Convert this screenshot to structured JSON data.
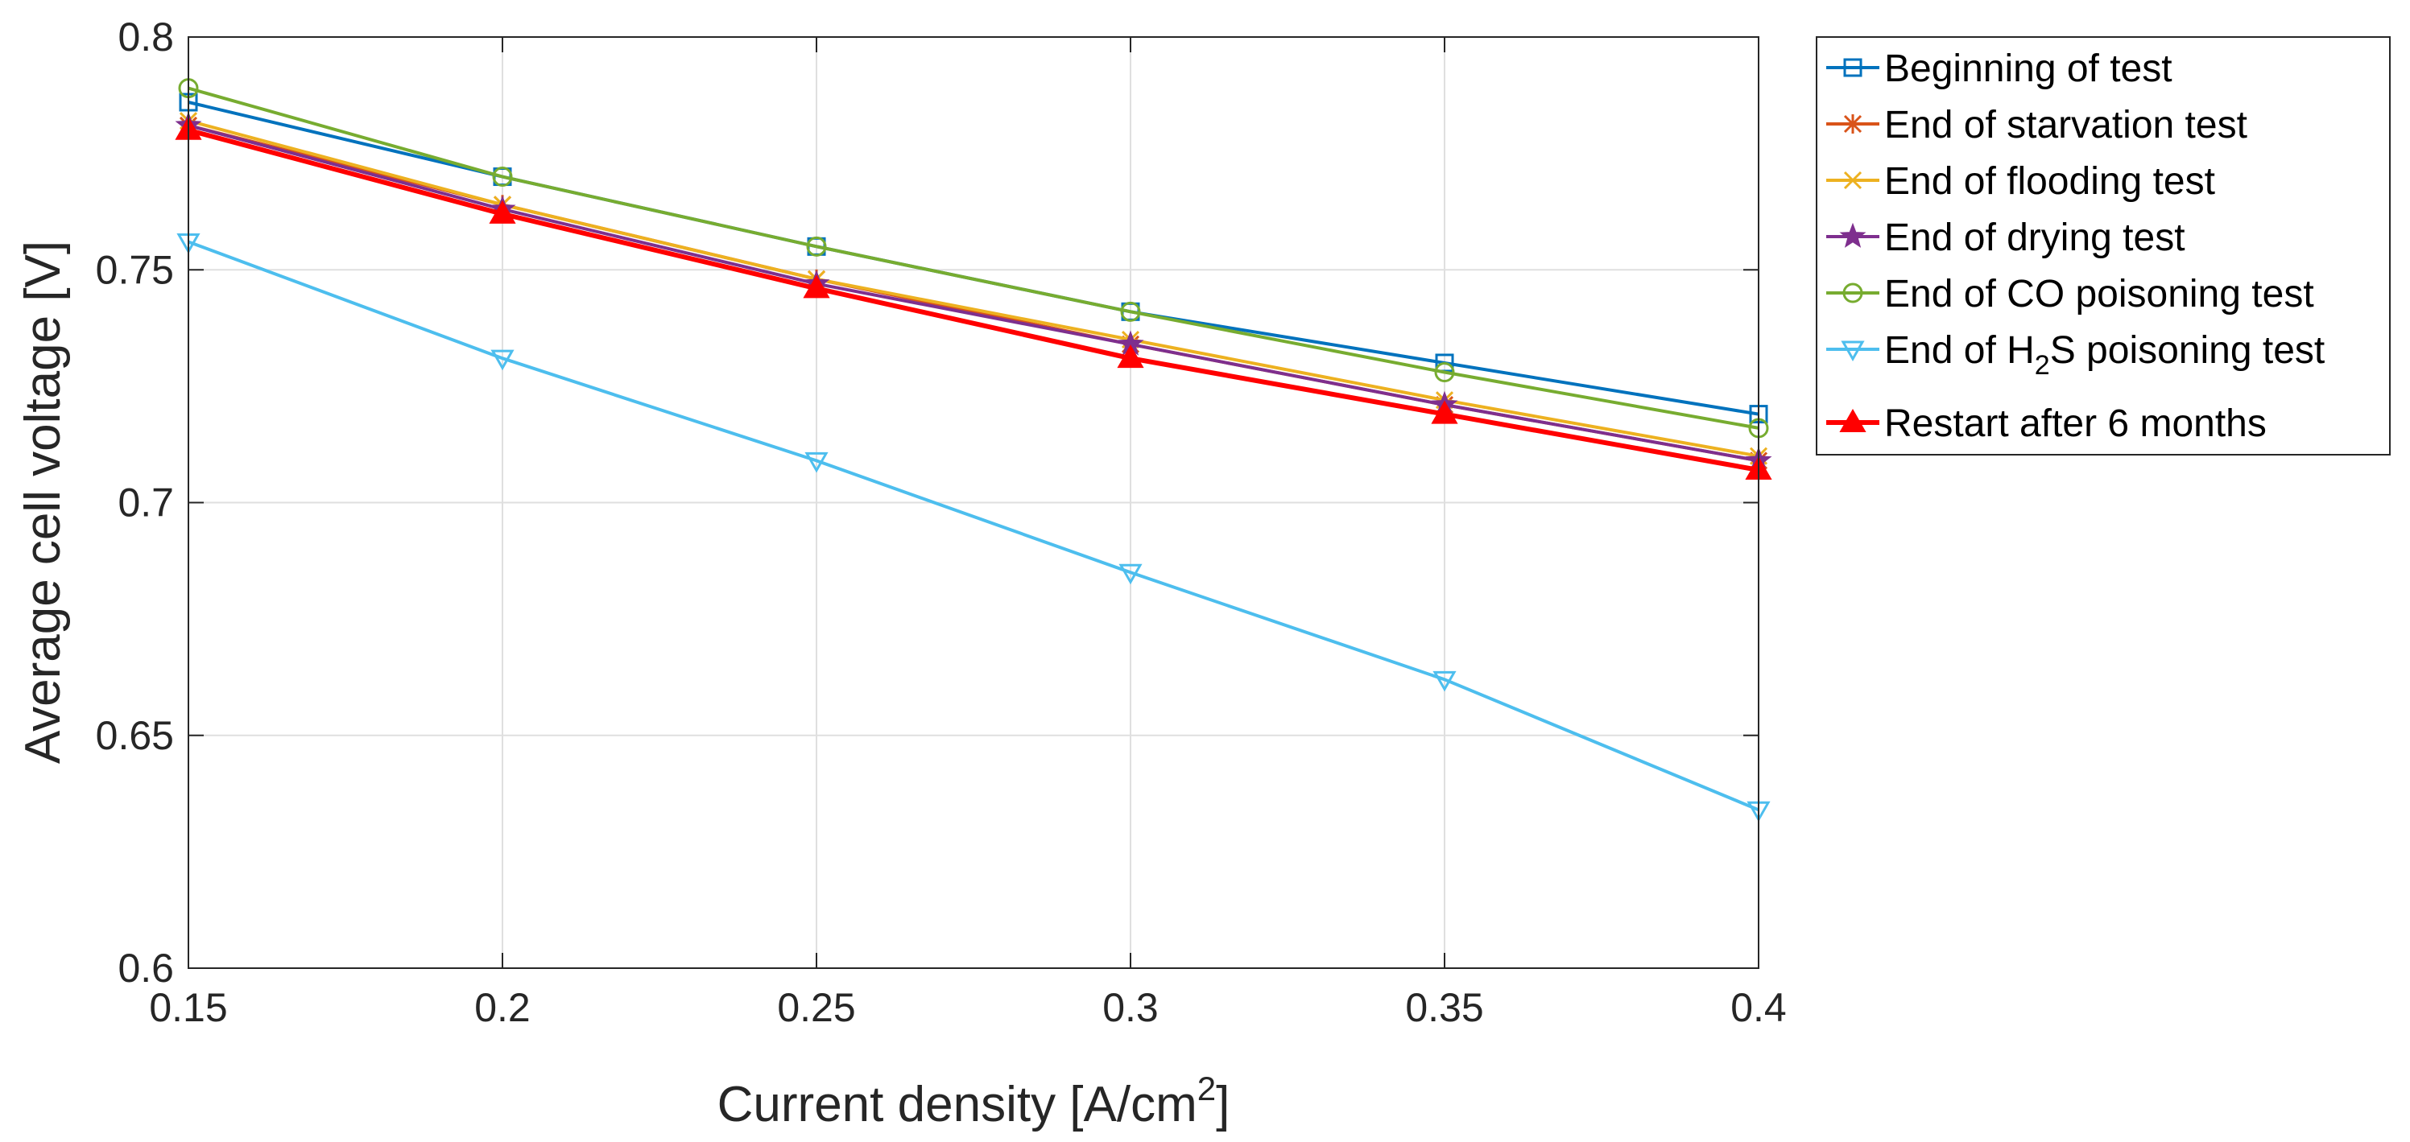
{
  "chart_data": {
    "type": "line",
    "xlabel_main": "Current density [A/cm",
    "xlabel_sup": "2",
    "xlabel_close": "]",
    "ylabel": "Average cell voltage [V]",
    "xlim": [
      0.15,
      0.4
    ],
    "ylim": [
      0.6,
      0.8
    ],
    "grid": true,
    "legend_position": "outside-right-top",
    "x": [
      0.15,
      0.2,
      0.25,
      0.3,
      0.35,
      0.4
    ],
    "x_tick_labels": [
      "0.15",
      "0.2",
      "0.25",
      "0.3",
      "0.35",
      "0.4"
    ],
    "y_ticks": [
      0.6,
      0.65,
      0.7,
      0.75,
      0.8
    ],
    "y_tick_labels": [
      "0.6",
      "0.65",
      "0.7",
      "0.75",
      "0.8"
    ],
    "series": [
      {
        "name": "Beginning of test",
        "color": "#0072BD",
        "marker": "square",
        "values": [
          0.786,
          0.77,
          0.755,
          0.741,
          0.73,
          0.719
        ]
      },
      {
        "name": "End of starvation test",
        "color": "#D95319",
        "marker": "asterisk",
        "values": [
          0.781,
          0.764,
          0.748,
          0.734,
          0.721,
          0.709
        ]
      },
      {
        "name": "End of flooding test",
        "color": "#EDB120",
        "marker": "x",
        "values": [
          0.782,
          0.764,
          0.748,
          0.735,
          0.722,
          0.71
        ]
      },
      {
        "name": "End of drying test",
        "color": "#7E2F8E",
        "marker": "pentagram",
        "values": [
          0.781,
          0.763,
          0.747,
          0.734,
          0.721,
          0.709
        ]
      },
      {
        "name": "End of CO poisoning test",
        "color": "#77AC30",
        "marker": "circle",
        "values": [
          0.789,
          0.77,
          0.755,
          0.741,
          0.728,
          0.716
        ]
      },
      {
        "name_pre": "End of H",
        "name_sub": "2",
        "name_post": "S poisoning test",
        "color": "#4DBEEE",
        "marker": "triangle-down",
        "values": [
          0.756,
          0.731,
          0.709,
          0.685,
          0.662,
          0.634
        ]
      },
      {
        "name": "Restart after 6 months",
        "color": "#FF0000",
        "marker": "triangle-up",
        "values": [
          0.78,
          0.762,
          0.746,
          0.731,
          0.719,
          0.707
        ]
      }
    ]
  }
}
